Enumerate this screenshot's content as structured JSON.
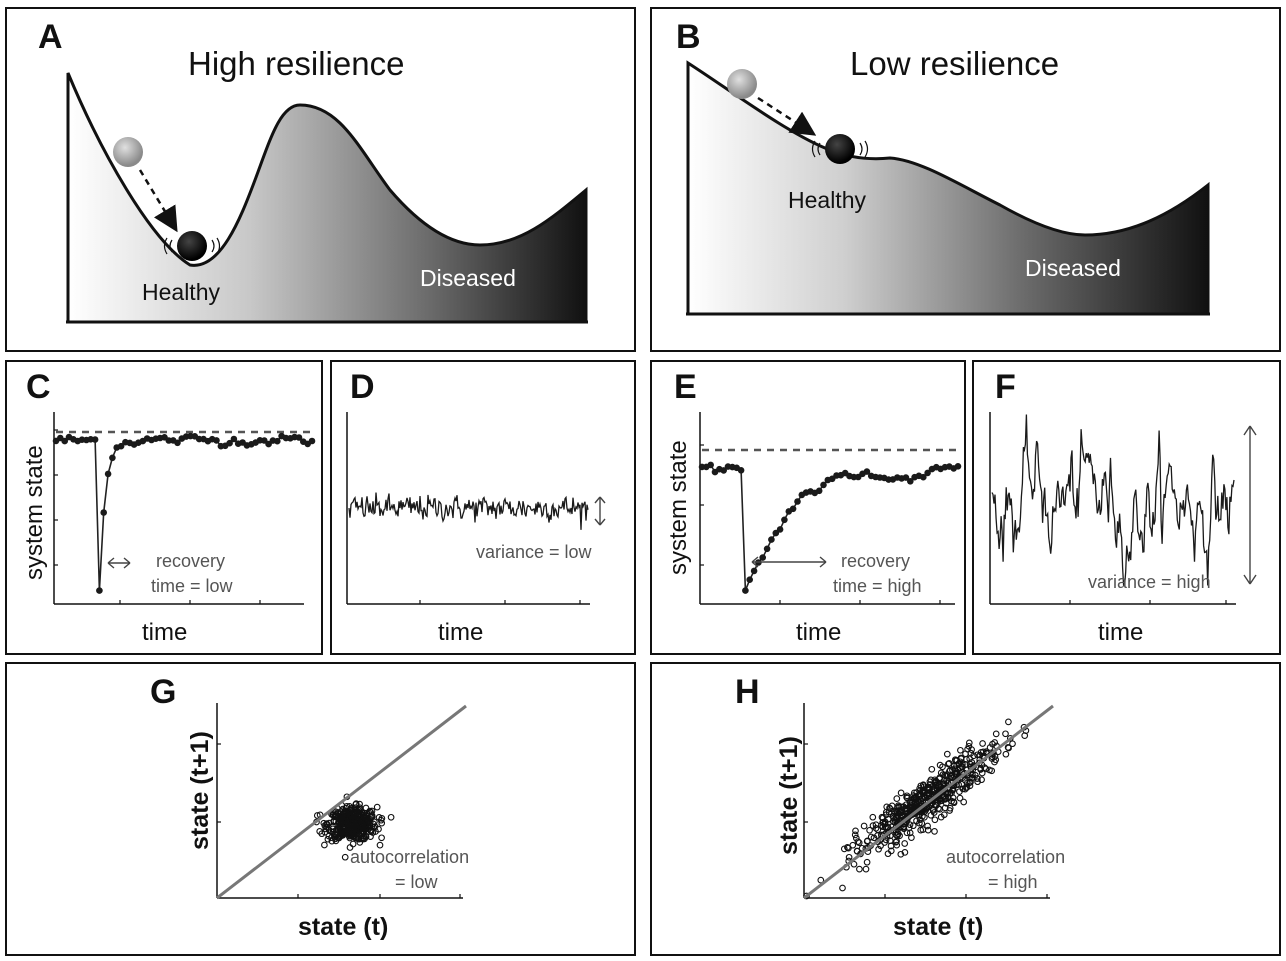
{
  "panels": {
    "A": {
      "letter": "A",
      "title": "High resilience",
      "healthy": "Healthy",
      "diseased": "Diseased"
    },
    "B": {
      "letter": "B",
      "title": "Low resilience",
      "healthy": "Healthy",
      "diseased": "Diseased"
    },
    "C": {
      "letter": "C",
      "ylabel": "system state",
      "xlabel": "time",
      "note1": "recovery",
      "note2": "time = low"
    },
    "D": {
      "letter": "D",
      "xlabel": "time",
      "note": "variance = low"
    },
    "E": {
      "letter": "E",
      "ylabel": "system state",
      "xlabel": "time",
      "note1": "recovery",
      "note2": "time = high"
    },
    "F": {
      "letter": "F",
      "xlabel": "time",
      "note": "variance = high"
    },
    "G": {
      "letter": "G",
      "ylabel": "state (t+1)",
      "xlabel": "state (t)",
      "note1": "autocorrelation",
      "note2": "= low"
    },
    "H": {
      "letter": "H",
      "ylabel": "state (t+1)",
      "xlabel": "state (t)",
      "note1": "autocorrelation",
      "note2": "= high"
    }
  },
  "colors": {
    "ink": "#111111",
    "gray_ball": "#9a9a9a",
    "dashed": "#555555",
    "diag": "#777777"
  },
  "chart_data": [
    {
      "panel": "C",
      "type": "line",
      "recovery": "low",
      "baseline": 0.85,
      "perturbed_min": 0.05,
      "recovery_steps": 4
    },
    {
      "panel": "D",
      "type": "line",
      "variance": "low",
      "noise_sd": 0.04
    },
    {
      "panel": "E",
      "type": "line",
      "recovery": "high",
      "baseline": 0.7,
      "perturbed_min": 0.05,
      "recovery_steps": 22
    },
    {
      "panel": "F",
      "type": "line",
      "variance": "high",
      "noise_sd": 0.18
    },
    {
      "panel": "G",
      "type": "scatter",
      "autocorrelation": "low",
      "center": [
        0.55,
        0.38
      ],
      "spread": 0.05
    },
    {
      "panel": "H",
      "type": "scatter",
      "autocorrelation": "high",
      "center": [
        0.5,
        0.5
      ],
      "spread_along": 0.28,
      "spread_across": 0.03
    }
  ]
}
